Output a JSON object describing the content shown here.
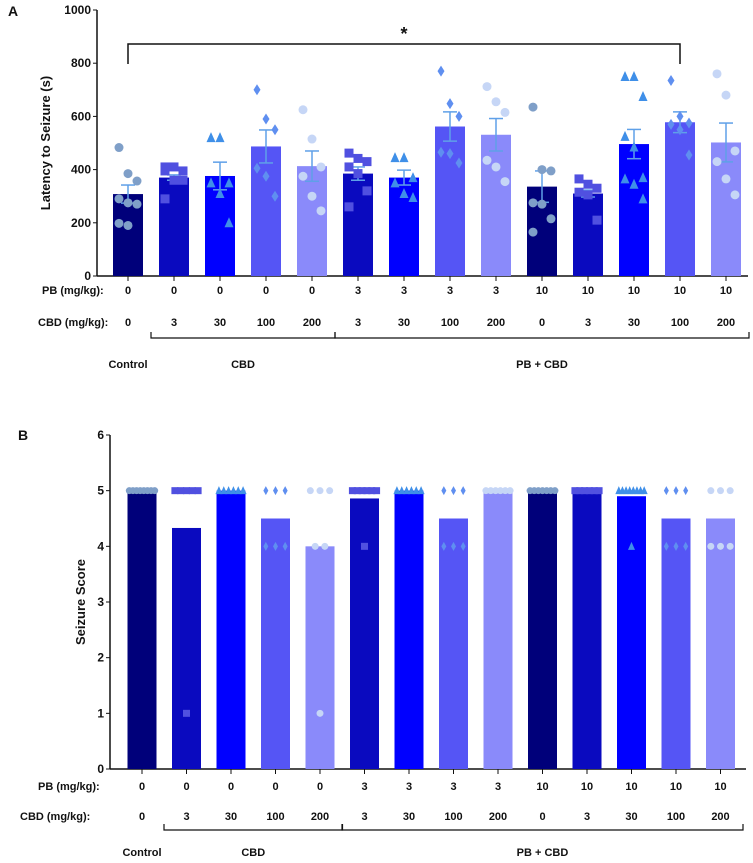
{
  "chart_data": [
    {
      "panel": "A",
      "type": "bar",
      "ylabel": "Latency to Seizure (s)",
      "ylim": [
        0,
        1000
      ],
      "yticks": [
        0,
        200,
        400,
        600,
        800,
        1000
      ],
      "significance": {
        "label": "*",
        "from": 0,
        "to": 12
      },
      "row_labels": {
        "pb": "PB (mg/kg):",
        "cbd": "CBD (mg/kg):"
      },
      "pb": [
        "0",
        "0",
        "0",
        "0",
        "0",
        "3",
        "3",
        "3",
        "3",
        "10",
        "10",
        "10",
        "10",
        "10"
      ],
      "cbd": [
        "0",
        "3",
        "30",
        "100",
        "200",
        "3",
        "30",
        "100",
        "200",
        "0",
        "3",
        "30",
        "100",
        "200"
      ],
      "groups": [
        {
          "label": "Control",
          "from": 0,
          "to": 0
        },
        {
          "label": "CBD",
          "from": 1,
          "to": 4
        },
        {
          "label": "PB + CBD",
          "from": 5,
          "to": 13
        }
      ],
      "values": [
        308,
        370,
        376,
        487,
        413,
        385,
        370,
        562,
        531,
        336,
        310,
        496,
        578,
        502
      ],
      "sem_upper": [
        342,
        380,
        428,
        549,
        470,
        410,
        398,
        617,
        592,
        395,
        323,
        551,
        617,
        575
      ],
      "points": [
        [
          483,
          385,
          357,
          290,
          275,
          270,
          198,
          190
        ],
        [
          410,
          410,
          395,
          395,
          360,
          360,
          290
        ],
        [
          520,
          520,
          350,
          350,
          310,
          200
        ],
        [
          700,
          590,
          550,
          405,
          375,
          300
        ],
        [
          625,
          515,
          410,
          375,
          300,
          245
        ],
        [
          462,
          442,
          430,
          410,
          385,
          320,
          260
        ],
        [
          445,
          445,
          370,
          350,
          310,
          295
        ],
        [
          770,
          648,
          600,
          465,
          460,
          425
        ],
        [
          712,
          655,
          615,
          435,
          410,
          355
        ],
        [
          635,
          400,
          395,
          275,
          270,
          215,
          165
        ],
        [
          365,
          345,
          330,
          315,
          305,
          210
        ],
        [
          750,
          750,
          675,
          525,
          485,
          370,
          365,
          345,
          290
        ],
        [
          735,
          600,
          575,
          570,
          550,
          455
        ],
        [
          760,
          680,
          470,
          430,
          365,
          305
        ]
      ]
    },
    {
      "panel": "B",
      "type": "bar",
      "ylabel": "Seizure Score",
      "ylim": [
        0,
        6
      ],
      "yticks": [
        0,
        1,
        2,
        3,
        4,
        5,
        6
      ],
      "row_labels": {
        "pb": "PB (mg/kg):",
        "cbd": "CBD (mg/kg):"
      },
      "pb": [
        "0",
        "0",
        "0",
        "0",
        "0",
        "3",
        "3",
        "3",
        "3",
        "10",
        "10",
        "10",
        "10",
        "10"
      ],
      "cbd": [
        "0",
        "3",
        "30",
        "100",
        "200",
        "3",
        "30",
        "100",
        "200",
        "0",
        "3",
        "30",
        "100",
        "200"
      ],
      "groups": [
        {
          "label": "Control",
          "from": 0,
          "to": 0
        },
        {
          "label": "CBD",
          "from": 1,
          "to": 4
        },
        {
          "label": "PB + CBD",
          "from": 5,
          "to": 13
        }
      ],
      "values": [
        5,
        4.33,
        5,
        4.5,
        4,
        4.86,
        5,
        4.5,
        5,
        5,
        5,
        4.9,
        4.5,
        4.5
      ],
      "points": [
        [
          5,
          5,
          5,
          5,
          5,
          5,
          5,
          5
        ],
        [
          5,
          5,
          5,
          5,
          5,
          1
        ],
        [
          5,
          5,
          5,
          5,
          5,
          5
        ],
        [
          5,
          5,
          5,
          4,
          4,
          4
        ],
        [
          5,
          5,
          5,
          4,
          4,
          1
        ],
        [
          5,
          5,
          5,
          5,
          5,
          5,
          4
        ],
        [
          5,
          5,
          5,
          5,
          5,
          5
        ],
        [
          5,
          5,
          5,
          4,
          4,
          4
        ],
        [
          5,
          5,
          5,
          5,
          5,
          5
        ],
        [
          5,
          5,
          5,
          5,
          5,
          5,
          5
        ],
        [
          5,
          5,
          5,
          5,
          5,
          5
        ],
        [
          5,
          5,
          5,
          5,
          5,
          5,
          5,
          5,
          4
        ],
        [
          5,
          5,
          5,
          4,
          4,
          4
        ],
        [
          5,
          5,
          5,
          4,
          4,
          4
        ]
      ]
    }
  ],
  "panel_labels": [
    "A",
    "B"
  ],
  "colors": {
    "bars": [
      "#00007a",
      "#0a0abf",
      "#0000ff",
      "#5555f5",
      "#8a8afa",
      "#0a0abf",
      "#0000ff",
      "#5555f5",
      "#8a8afa",
      "#00007a",
      "#0a0abf",
      "#0000ff",
      "#5555f5",
      "#8a8afa"
    ],
    "points": [
      "#7f9fc8",
      "#5050e0",
      "#3f8fe8",
      "#5f8ff0",
      "#c6d6f6",
      "#5050e0",
      "#3f8fe8",
      "#5f8ff0",
      "#c6d6f6",
      "#7f9fc8",
      "#5050e0",
      "#3f8fe8",
      "#5f8ff0",
      "#c6d6f6"
    ],
    "shapes": [
      "circle",
      "square",
      "triangle",
      "diamond",
      "circle",
      "square",
      "triangle",
      "diamond",
      "circle",
      "circle",
      "square",
      "triangle",
      "diamond",
      "circle"
    ]
  }
}
